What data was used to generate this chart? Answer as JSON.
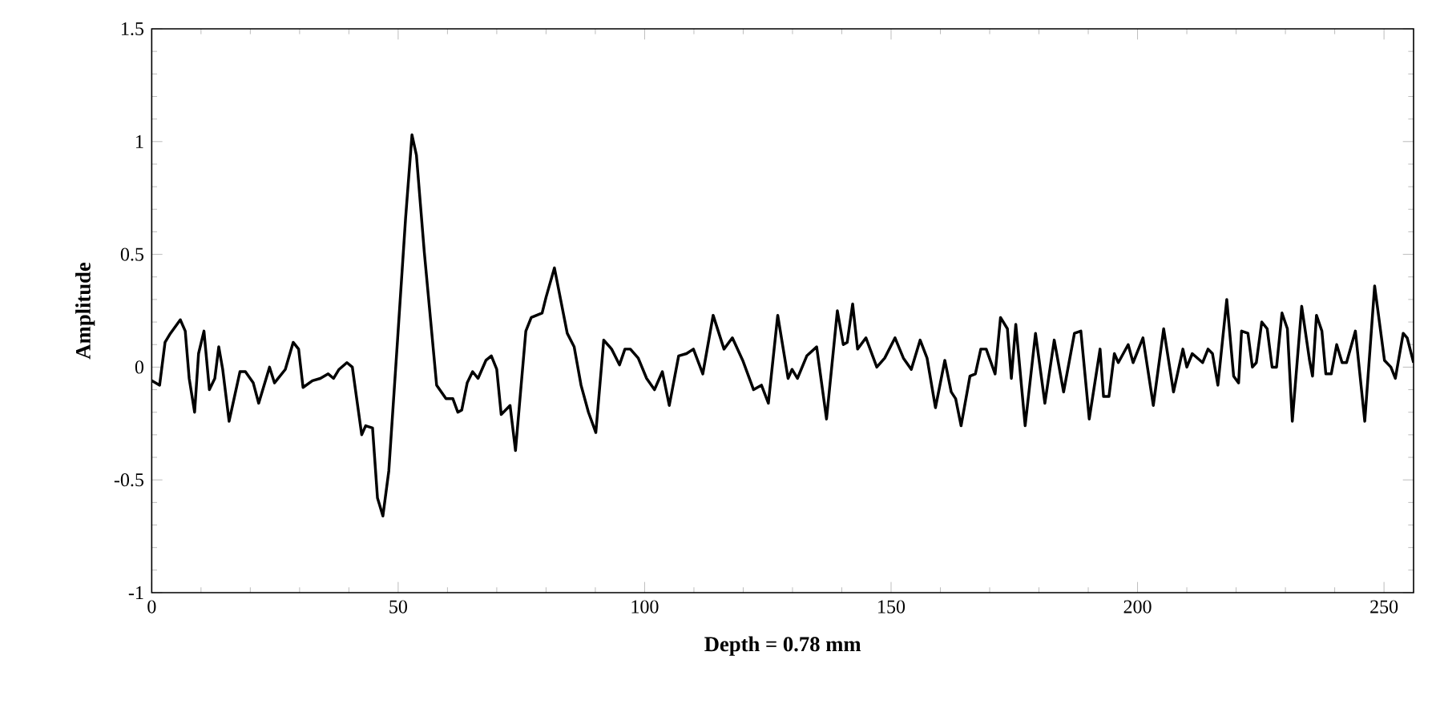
{
  "chart_data": {
    "type": "line",
    "xlabel": "Depth = 0.78 mm",
    "ylabel": "Amplitude",
    "color": "#000000",
    "marker": "none",
    "line_style": "solid",
    "xlim": [
      0,
      256
    ],
    "ylim": [
      -1,
      1.5
    ],
    "xticks": [
      0,
      50,
      100,
      150,
      200,
      250
    ],
    "yticks": [
      -1,
      -0.5,
      0,
      0.5,
      1,
      1.5
    ],
    "x": [
      0,
      1.6,
      2.7,
      3.8,
      5.8,
      6.8,
      7.6,
      8.7,
      9.5,
      10.6,
      11.7,
      12.8,
      13.6,
      14.4,
      15.7,
      17.9,
      19.0,
      20.6,
      21.7,
      23.9,
      24.9,
      27.1,
      28.7,
      29.8,
      30.7,
      32.6,
      34.2,
      35.8,
      36.9,
      38.0,
      39.6,
      40.7,
      42.6,
      43.4,
      44.8,
      45.8,
      46.9,
      48.1,
      49.9,
      51.5,
      52.8,
      53.7,
      55.3,
      57.8,
      59.7,
      61.1,
      62.1,
      62.9,
      64.0,
      65.1,
      66.2,
      67.8,
      68.9,
      70.0,
      70.9,
      72.7,
      73.8,
      75.9,
      77.0,
      79.2,
      80.0,
      81.7,
      84.3,
      85.7,
      87.1,
      88.6,
      90.1,
      91.7,
      93.3,
      94.9,
      96.0,
      97.1,
      98.7,
      100.4,
      102.0,
      103.6,
      105.0,
      106.9,
      108.5,
      109.9,
      111.8,
      113.9,
      116.1,
      117.8,
      119.9,
      122.1,
      123.7,
      125.1,
      127.0,
      129.1,
      129.9,
      131.0,
      132.9,
      134.9,
      136.9,
      139.1,
      140.3,
      141.1,
      142.2,
      143.2,
      144.9,
      147.1,
      148.7,
      150.8,
      152.5,
      154.1,
      155.9,
      157.3,
      159.0,
      160.9,
      162.2,
      163.1,
      164.2,
      166.0,
      167.1,
      168.2,
      169.3,
      171.1,
      172.2,
      173.6,
      174.4,
      175.3,
      177.2,
      179.3,
      181.2,
      183.1,
      185.0,
      187.2,
      188.5,
      190.2,
      192.4,
      193.1,
      194.2,
      195.3,
      196.1,
      198.1,
      199.1,
      201.1,
      203.2,
      205.3,
      207.3,
      209.2,
      210.0,
      211.1,
      213.2,
      214.3,
      215.2,
      216.3,
      218.1,
      219.5,
      220.5,
      221.1,
      222.4,
      223.3,
      224.1,
      225.2,
      226.3,
      227.3,
      228.2,
      229.3,
      230.4,
      231.4,
      233.3,
      234.9,
      235.5,
      236.3,
      237.4,
      238.2,
      239.3,
      240.4,
      241.5,
      242.4,
      244.2,
      246.1,
      248.1,
      250.1,
      251.4,
      252.3,
      253.9,
      254.7,
      256
    ],
    "values": [
      -0.06,
      -0.08,
      0.11,
      0.15,
      0.21,
      0.16,
      -0.05,
      -0.2,
      0.06,
      0.16,
      -0.1,
      -0.05,
      0.09,
      -0.01,
      -0.24,
      -0.02,
      -0.02,
      -0.07,
      -0.16,
      0.0,
      -0.07,
      -0.01,
      0.11,
      0.08,
      -0.09,
      -0.06,
      -0.05,
      -0.03,
      -0.05,
      -0.01,
      0.02,
      0.0,
      -0.3,
      -0.26,
      -0.27,
      -0.58,
      -0.66,
      -0.46,
      0.13,
      0.66,
      1.03,
      0.94,
      0.51,
      -0.08,
      -0.14,
      -0.14,
      -0.2,
      -0.19,
      -0.07,
      -0.02,
      -0.05,
      0.03,
      0.05,
      -0.01,
      -0.21,
      -0.17,
      -0.37,
      0.16,
      0.22,
      0.24,
      0.31,
      0.44,
      0.15,
      0.09,
      -0.08,
      -0.2,
      -0.29,
      0.12,
      0.08,
      0.01,
      0.08,
      0.08,
      0.04,
      -0.05,
      -0.1,
      -0.02,
      -0.17,
      0.05,
      0.06,
      0.08,
      -0.03,
      0.23,
      0.08,
      0.13,
      0.03,
      -0.1,
      -0.08,
      -0.16,
      0.23,
      -0.05,
      -0.01,
      -0.05,
      0.05,
      0.09,
      -0.23,
      0.25,
      0.1,
      0.11,
      0.28,
      0.08,
      0.13,
      0.0,
      0.04,
      0.13,
      0.04,
      -0.01,
      0.12,
      0.04,
      -0.18,
      0.03,
      -0.11,
      -0.14,
      -0.26,
      -0.04,
      -0.03,
      0.08,
      0.08,
      -0.03,
      0.22,
      0.17,
      -0.05,
      0.19,
      -0.26,
      0.15,
      -0.16,
      0.12,
      -0.11,
      0.15,
      0.16,
      -0.23,
      0.08,
      -0.13,
      -0.13,
      0.06,
      0.02,
      0.1,
      0.02,
      0.13,
      -0.17,
      0.17,
      -0.11,
      0.08,
      0.0,
      0.06,
      0.02,
      0.08,
      0.06,
      -0.08,
      0.3,
      -0.04,
      -0.07,
      0.16,
      0.15,
      0.0,
      0.02,
      0.2,
      0.17,
      0.0,
      0.0,
      0.24,
      0.17,
      -0.24,
      0.27,
      0.03,
      -0.04,
      0.23,
      0.16,
      -0.03,
      -0.03,
      0.1,
      0.02,
      0.02,
      0.16,
      -0.24,
      0.36,
      0.03,
      0.0,
      -0.05,
      0.15,
      0.13,
      0.02
    ]
  }
}
